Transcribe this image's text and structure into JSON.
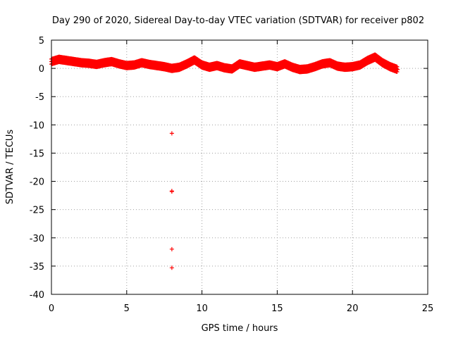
{
  "chart_data": {
    "type": "scatter",
    "title": "Day 290 of 2020, Sidereal Day-to-day VTEC variation (SDTVAR) for receiver p802",
    "xlabel": "GPS time / hours",
    "ylabel": "SDTVAR / TECUs",
    "xlim": [
      0,
      25
    ],
    "ylim": [
      -40,
      5
    ],
    "xticks": [
      0,
      5,
      10,
      15,
      20,
      25
    ],
    "yticks": [
      5,
      0,
      -5,
      -10,
      -15,
      -20,
      -25,
      -30,
      -35,
      -40
    ],
    "grid": true,
    "marker": "+",
    "series": [
      {
        "name": "SDTVAR",
        "color": "#ff0000",
        "band": [
          {
            "x": 0.0,
            "y": 1.2
          },
          {
            "x": 0.5,
            "y": 1.6
          },
          {
            "x": 1.0,
            "y": 1.4
          },
          {
            "x": 1.5,
            "y": 1.2
          },
          {
            "x": 2.0,
            "y": 1.0
          },
          {
            "x": 2.5,
            "y": 0.9
          },
          {
            "x": 3.0,
            "y": 0.7
          },
          {
            "x": 3.5,
            "y": 1.0
          },
          {
            "x": 4.0,
            "y": 1.2
          },
          {
            "x": 4.5,
            "y": 0.8
          },
          {
            "x": 5.0,
            "y": 0.5
          },
          {
            "x": 5.5,
            "y": 0.6
          },
          {
            "x": 6.0,
            "y": 1.0
          },
          {
            "x": 6.5,
            "y": 0.7
          },
          {
            "x": 7.0,
            "y": 0.5
          },
          {
            "x": 7.5,
            "y": 0.3
          },
          {
            "x": 8.0,
            "y": 0.0
          },
          {
            "x": 8.5,
            "y": 0.2
          },
          {
            "x": 9.0,
            "y": 0.8
          },
          {
            "x": 9.5,
            "y": 1.5
          },
          {
            "x": 10.0,
            "y": 0.6
          },
          {
            "x": 10.5,
            "y": 0.2
          },
          {
            "x": 11.0,
            "y": 0.5
          },
          {
            "x": 11.5,
            "y": 0.1
          },
          {
            "x": 12.0,
            "y": -0.1
          },
          {
            "x": 12.5,
            "y": 0.8
          },
          {
            "x": 13.0,
            "y": 0.5
          },
          {
            "x": 13.5,
            "y": 0.2
          },
          {
            "x": 14.0,
            "y": 0.4
          },
          {
            "x": 14.5,
            "y": 0.6
          },
          {
            "x": 15.0,
            "y": 0.3
          },
          {
            "x": 15.5,
            "y": 0.8
          },
          {
            "x": 16.0,
            "y": 0.2
          },
          {
            "x": 16.5,
            "y": -0.2
          },
          {
            "x": 17.0,
            "y": -0.1
          },
          {
            "x": 17.5,
            "y": 0.3
          },
          {
            "x": 18.0,
            "y": 0.8
          },
          {
            "x": 18.5,
            "y": 1.0
          },
          {
            "x": 19.0,
            "y": 0.4
          },
          {
            "x": 19.5,
            "y": 0.2
          },
          {
            "x": 20.0,
            "y": 0.3
          },
          {
            "x": 20.5,
            "y": 0.6
          },
          {
            "x": 21.0,
            "y": 1.4
          },
          {
            "x": 21.5,
            "y": 2.0
          },
          {
            "x": 22.0,
            "y": 1.0
          },
          {
            "x": 22.5,
            "y": 0.3
          },
          {
            "x": 23.0,
            "y": -0.2
          }
        ],
        "outliers": [
          {
            "x": 8.0,
            "y": -11.5
          },
          {
            "x": 8.0,
            "y": -21.7
          },
          {
            "x": 8.0,
            "y": -21.8
          },
          {
            "x": 8.0,
            "y": -32.0
          },
          {
            "x": 8.0,
            "y": -35.3
          }
        ]
      }
    ]
  }
}
